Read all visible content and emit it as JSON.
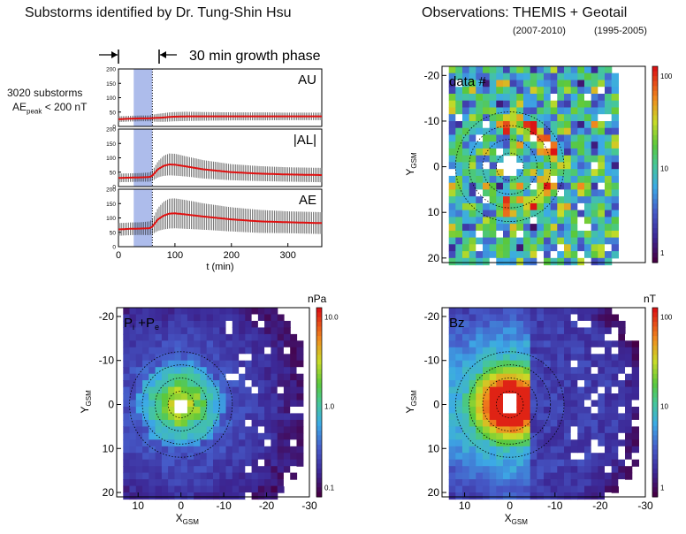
{
  "titles": {
    "left": "Substorms identified by Dr. Tung-Shin Hsu",
    "right": "Observations: THEMIS + Geotail",
    "right_years_themis": "(2007-2010)",
    "right_years_geotail": "(1995-2005)"
  },
  "annotations": {
    "growth_phase": "30 min growth phase",
    "count": "3020 substorms",
    "ae_condition_prefix": "AE",
    "ae_condition_sub": "peak",
    "ae_condition_suffix": " < 200 nT"
  },
  "time_series": {
    "xlabel": "t (min)",
    "x_ticks": [
      "0",
      "100",
      "200",
      "300"
    ],
    "y_ticks_au": [
      "0",
      "50",
      "100",
      "150",
      "200"
    ],
    "panels": [
      {
        "label": "AU"
      },
      {
        "label": "|AL|"
      },
      {
        "label": "AE"
      }
    ],
    "shade_color": "#9fb0e8"
  },
  "maps": {
    "data_count_label": "data #",
    "pressure_label_main": "P",
    "pressure_label_i": "i",
    "pressure_label_plus": " +P",
    "pressure_label_e": "e",
    "bz_label": "Bz",
    "unit_pressure": "nPa",
    "unit_bz": "nT",
    "ylabel_main": "Y",
    "ylabel_sub": "GSM",
    "xlabel_main": "X",
    "xlabel_sub": "GSM",
    "y_ticks": [
      "-20",
      "-10",
      "0",
      "10",
      "20"
    ],
    "x_ticks": [
      "10",
      "0",
      "-10",
      "-20",
      "-30"
    ],
    "cbar_count": [
      "100",
      "10",
      "1"
    ],
    "cbar_pressure": [
      "10.0",
      "1.0",
      "0.1"
    ],
    "cbar_bz": [
      "100",
      "10",
      "1"
    ]
  },
  "chart_data": [
    {
      "type": "line",
      "title": "AU",
      "x": [
        0,
        20,
        40,
        55,
        60,
        70,
        80,
        90,
        100,
        120,
        150,
        200,
        250,
        300,
        360
      ],
      "series": [
        {
          "values": [
            25,
            27,
            28,
            28,
            29,
            30,
            31,
            33,
            34,
            35,
            35,
            35,
            35,
            35,
            35
          ]
        }
      ],
      "xlim": [
        0,
        360
      ],
      "ylim": [
        0,
        200
      ],
      "error_half_width": [
        10,
        10,
        10,
        10,
        12,
        14,
        15,
        16,
        16,
        16,
        15,
        14,
        14,
        13,
        13
      ]
    },
    {
      "type": "line",
      "title": "|AL|",
      "x": [
        0,
        20,
        40,
        55,
        60,
        70,
        80,
        90,
        100,
        120,
        150,
        200,
        250,
        300,
        360
      ],
      "series": [
        {
          "values": [
            30,
            31,
            32,
            33,
            38,
            60,
            72,
            77,
            76,
            70,
            60,
            50,
            45,
            42,
            40
          ]
        }
      ],
      "xlim": [
        0,
        360
      ],
      "ylim": [
        0,
        200
      ],
      "error_half_width": [
        15,
        15,
        15,
        16,
        18,
        28,
        35,
        38,
        38,
        35,
        32,
        28,
        26,
        25,
        25
      ]
    },
    {
      "type": "line",
      "title": "AE",
      "x": [
        0,
        20,
        40,
        55,
        60,
        70,
        80,
        90,
        100,
        120,
        150,
        200,
        250,
        300,
        360
      ],
      "series": [
        {
          "values": [
            60,
            62,
            63,
            64,
            70,
            95,
            108,
            115,
            116,
            112,
            105,
            95,
            88,
            85,
            82
          ]
        }
      ],
      "xlim": [
        0,
        360
      ],
      "ylim": [
        0,
        200
      ],
      "error_half_width": [
        22,
        22,
        22,
        24,
        26,
        40,
        48,
        52,
        52,
        50,
        46,
        42,
        40,
        38,
        38
      ]
    },
    {
      "type": "heatmap",
      "title": "data #",
      "xlim": [
        15,
        -30
      ],
      "ylim": [
        -22,
        21
      ],
      "colorbar_scale": "log",
      "colorbar_range": [
        1,
        300
      ]
    },
    {
      "type": "heatmap",
      "title": "Pi +Pe",
      "xlim": [
        15,
        -30
      ],
      "ylim": [
        -22,
        21
      ],
      "colorbar_scale": "log",
      "colorbar_range": [
        0.05,
        10.0
      ],
      "colorbar_unit": "nPa"
    },
    {
      "type": "heatmap",
      "title": "Bz",
      "xlim": [
        15,
        -30
      ],
      "ylim": [
        -22,
        21
      ],
      "colorbar_scale": "log",
      "colorbar_range": [
        1,
        300
      ],
      "colorbar_unit": "nT"
    }
  ]
}
